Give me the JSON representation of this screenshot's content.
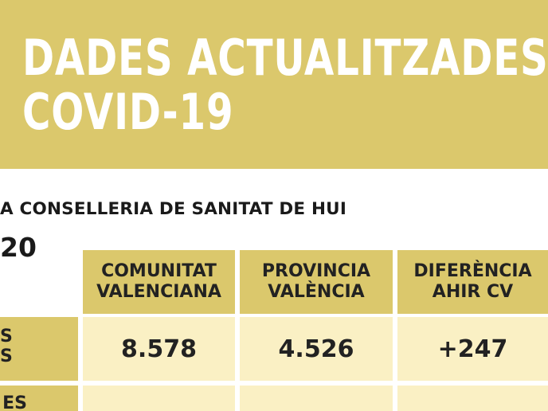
{
  "header": {
    "title_line1": "DADES ACTUALITZADES",
    "title_line2": "COVID-19",
    "subtitle": "A CONSELLERIA DE SANITAT DE HUI",
    "date_fragment": "20"
  },
  "table": {
    "columns": [
      {
        "line1": "COMUNITAT",
        "line2": "VALENCIANA"
      },
      {
        "line1": "PROVINCIA",
        "line2": "VALÈNCIA"
      },
      {
        "line1": "DIFERÈNCIA",
        "line2": "AHIR CV"
      }
    ],
    "rows": [
      {
        "label_line1": "S",
        "label_line2": "S",
        "values": [
          "8.578",
          "4.526",
          "+247"
        ]
      },
      {
        "label_line1": "ES",
        "label_line2": "",
        "values": [
          "",
          "",
          ""
        ]
      }
    ]
  },
  "colors": {
    "header_band": "#dbc86c",
    "header_cell": "#dbc86c",
    "value_cell": "#faf0c4",
    "title_text": "#ffffff",
    "body_text": "#222222"
  }
}
